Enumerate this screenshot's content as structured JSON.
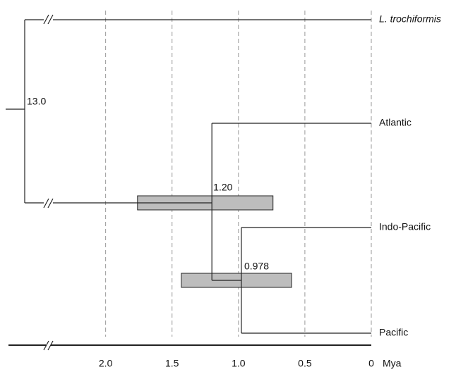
{
  "chart_data": {
    "type": "tree",
    "leaves": [
      "L. trochiformis",
      "Atlantic",
      "Indo-Pacific",
      "Pacific"
    ],
    "nodes": [
      {
        "age": 13.0,
        "age_label": "13.0"
      },
      {
        "age": 1.2,
        "age_label": "1.20",
        "hpd": [
          1.76,
          0.74
        ]
      },
      {
        "age": 0.978,
        "hpd": [
          1.43,
          0.6
        ]
      }
    ],
    "xlim": [
      2.37,
      0
    ],
    "xticks": [
      {
        "value": 2,
        "label": "2.0"
      },
      1.5,
      {
        "value": 1,
        "label": "1.0"
      },
      0.5,
      0
    ],
    "xlabel": "Mya",
    "grid": true,
    "hpd_color": "#bdbdbd"
  }
}
